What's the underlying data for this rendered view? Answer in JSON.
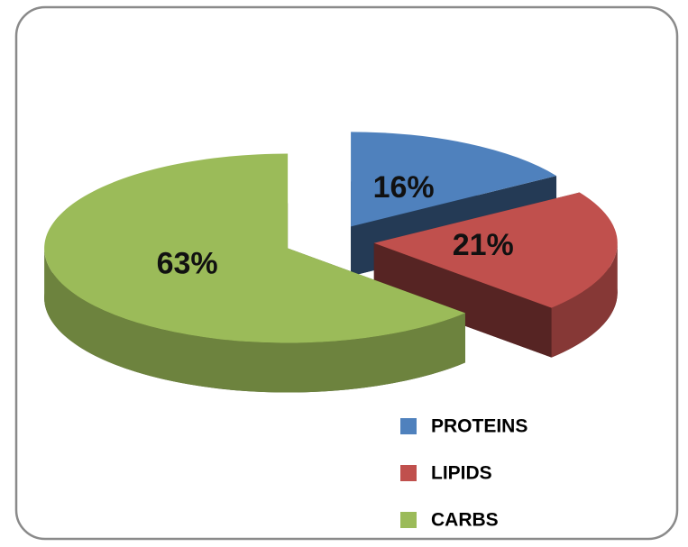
{
  "chart_data": {
    "type": "pie",
    "categories": [
      "PROTEINS",
      "LIPIDS",
      "CARBS"
    ],
    "values": [
      16,
      21,
      63
    ],
    "value_labels": [
      "16%",
      "21%",
      "63%"
    ],
    "colors": [
      "#4f81bd",
      "#c0504d",
      "#9bbb59"
    ],
    "legend": "bottom-right"
  }
}
